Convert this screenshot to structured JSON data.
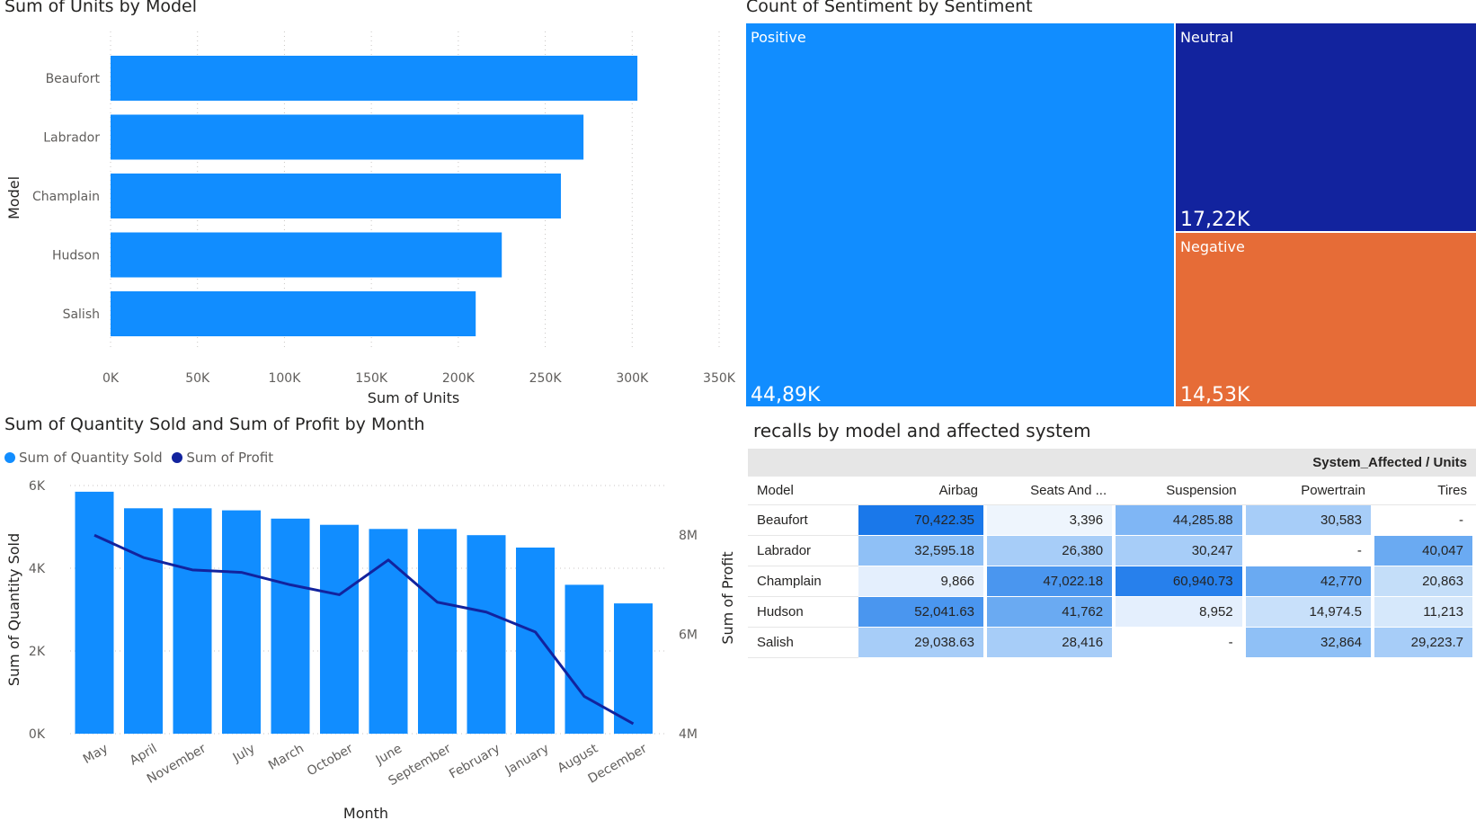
{
  "colors": {
    "primary": "#118DFF",
    "dark": "#12239E",
    "orange": "#E66C37",
    "text": "#252423"
  },
  "bar_chart": {
    "title": "Sum of Units by Model",
    "chart_data": {
      "type": "bar",
      "orientation": "horizontal",
      "title": "Sum of Units by Model",
      "xlabel": "Sum of Units",
      "ylabel": "Model",
      "categories": [
        "Beaufort",
        "Labrador",
        "Champlain",
        "Hudson",
        "Salish"
      ],
      "values": [
        303000,
        272000,
        259000,
        225000,
        210000
      ],
      "xlim": [
        0,
        350000
      ],
      "ticks": [
        "0K",
        "50K",
        "100K",
        "150K",
        "200K",
        "250K",
        "300K",
        "350K"
      ],
      "grid": true
    }
  },
  "treemap": {
    "title": "Count of Sentiment by Sentiment",
    "chart_data": {
      "type": "treemap",
      "title": "Count of Sentiment by Sentiment",
      "categories": [
        "Positive",
        "Neutral",
        "Negative"
      ],
      "values": [
        44890,
        17220,
        14530
      ],
      "value_labels": [
        "44,89K",
        "17,22K",
        "14,53K"
      ],
      "colors": [
        "#118DFF",
        "#12239E",
        "#E66C37"
      ]
    }
  },
  "combo_chart": {
    "title": "Sum of Quantity Sold and Sum of Profit by Month",
    "chart_data": {
      "type": "bar",
      "title": "Sum of Quantity Sold and Sum of Profit by Month",
      "xlabel": "Month",
      "ylabel": "Sum of Quantity Sold",
      "y2label": "Sum of Profit",
      "categories": [
        "May",
        "April",
        "November",
        "July",
        "March",
        "October",
        "June",
        "September",
        "February",
        "January",
        "August",
        "December"
      ],
      "series": [
        {
          "name": "Sum of Quantity Sold",
          "type": "bar",
          "axis": "left",
          "values": [
            5850,
            5450,
            5450,
            5400,
            5200,
            5050,
            4950,
            4950,
            4800,
            4500,
            3600,
            3150
          ]
        },
        {
          "name": "Sum of Profit",
          "type": "line",
          "axis": "right",
          "values": [
            8000000,
            7550000,
            7300000,
            7250000,
            7000000,
            6800000,
            7500000,
            6650000,
            6450000,
            6050000,
            4750000,
            4200000
          ]
        }
      ],
      "ylim": [
        0,
        6000
      ],
      "y2lim": [
        4000000,
        9000000
      ],
      "yticks": [
        "0K",
        "2K",
        "4K",
        "6K"
      ],
      "y2ticks": [
        "4M",
        "6M",
        "8M"
      ],
      "legend": "top-left",
      "grid": true
    }
  },
  "matrix": {
    "title": "recalls by model and affected system",
    "column_header_banner": "System_Affected / Units",
    "chart_data": {
      "type": "table",
      "columns": [
        "Model",
        "Airbag",
        "Seats And ...",
        "Suspension",
        "Powertrain",
        "Tires"
      ],
      "rows": [
        [
          "Beaufort",
          "70,422.35",
          "3,396",
          "44,285.88",
          "30,583",
          "-"
        ],
        [
          "Labrador",
          "32,595.18",
          "26,380",
          "30,247",
          "-",
          "40,047"
        ],
        [
          "Champlain",
          "9,866",
          "47,022.18",
          "60,940.73",
          "42,770",
          "20,863"
        ],
        [
          "Hudson",
          "52,041.63",
          "41,762",
          "8,952",
          "14,974.5",
          "11,213"
        ],
        [
          "Salish",
          "29,038.63",
          "28,416",
          "-",
          "32,864",
          "29,223.7"
        ]
      ],
      "cell_colors": [
        [
          "#1a78ea",
          "#eef5fd",
          "#7fb6f5",
          "#a7cdf8",
          "#ffffff"
        ],
        [
          "#8fc0f6",
          "#a7cdf8",
          "#a7cdf8",
          "#ffffff",
          "#6aaaf2"
        ],
        [
          "#e4effd",
          "#4a96ef",
          "#2780ec",
          "#6aaaf2",
          "#c4def9"
        ],
        [
          "#4a96ef",
          "#6aaaf2",
          "#e4effd",
          "#c8e0fa",
          "#d6e8fb"
        ],
        [
          "#a7cdf8",
          "#a7cdf8",
          "#ffffff",
          "#8fc0f6",
          "#a7cdf8"
        ]
      ]
    }
  }
}
